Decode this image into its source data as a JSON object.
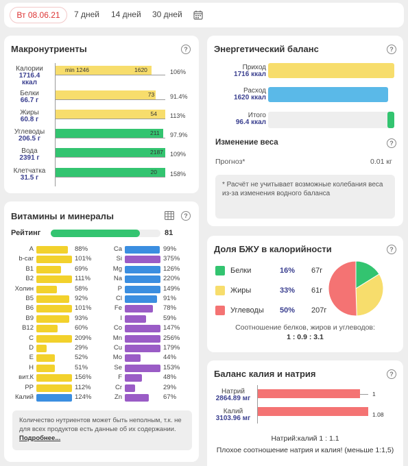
{
  "tabs": {
    "active": "Вт 08.06.21",
    "t7": "7 дней",
    "t14": "14 дней",
    "t30": "30 дней"
  },
  "macro": {
    "title": "Макронутриенты",
    "min_label": "min 1246",
    "min_value": "1620",
    "rows": [
      {
        "name": "Калории",
        "value": "1716.4",
        "unit": "ккал",
        "bar_label": "",
        "pct": "106%",
        "fill": 1.06
      },
      {
        "name": "Белки",
        "value": "66.7 г",
        "bar_label": "73",
        "pct": "91.4%",
        "fill": 0.914
      },
      {
        "name": "Жиры",
        "value": "60.8 г",
        "bar_label": "54",
        "pct": "113%",
        "fill": 1.0
      },
      {
        "name": "Углеводы",
        "value": "206.5 г",
        "bar_label": "211",
        "pct": "97.9%",
        "fill": 0.979
      },
      {
        "name": "Вода",
        "value": "2391 г",
        "bar_label": "2187",
        "pct": "109%",
        "fill": 1.0
      },
      {
        "name": "Клетчатка",
        "value": "31.5 г",
        "bar_label": "20",
        "pct": "158%",
        "fill": 1.0
      }
    ]
  },
  "energy": {
    "title": "Энергетический баланс",
    "income_name": "Приход",
    "income_value": "1716 ккал",
    "expense_name": "Расход",
    "expense_value": "1620 ккал",
    "total_name": "Итого",
    "total_value": "96.4 ккал",
    "weight_title": "Изменение веса",
    "forecast_label": "Прогноз*",
    "forecast_value": "0.01 кг",
    "note": "* Расчёт не учитывает возможные колебания веса из-за изменения водного баланса"
  },
  "vitamins": {
    "title": "Витамины и минералы",
    "rating_label": "Рейтинг",
    "rating_value": "81",
    "rating_fill": 0.81,
    "left": [
      {
        "name": "A",
        "pct": "88%",
        "fill": 0.88,
        "color": "y"
      },
      {
        "name": "b-car",
        "pct": "101%",
        "fill": 1.0,
        "color": "y"
      },
      {
        "name": "B1",
        "pct": "69%",
        "fill": 0.69,
        "color": "y"
      },
      {
        "name": "B2",
        "pct": "111%",
        "fill": 1.0,
        "color": "y"
      },
      {
        "name": "Холин",
        "pct": "58%",
        "fill": 0.58,
        "color": "y"
      },
      {
        "name": "B5",
        "pct": "92%",
        "fill": 0.92,
        "color": "y"
      },
      {
        "name": "B6",
        "pct": "101%",
        "fill": 1.0,
        "color": "y"
      },
      {
        "name": "B9",
        "pct": "93%",
        "fill": 0.93,
        "color": "y"
      },
      {
        "name": "B12",
        "pct": "60%",
        "fill": 0.6,
        "color": "y"
      },
      {
        "name": "C",
        "pct": "209%",
        "fill": 1.0,
        "color": "y"
      },
      {
        "name": "D",
        "pct": "29%",
        "fill": 0.29,
        "color": "y"
      },
      {
        "name": "E",
        "pct": "52%",
        "fill": 0.52,
        "color": "y"
      },
      {
        "name": "H",
        "pct": "51%",
        "fill": 0.51,
        "color": "y"
      },
      {
        "name": "вит.К",
        "pct": "156%",
        "fill": 1.0,
        "color": "y"
      },
      {
        "name": "PP",
        "pct": "112%",
        "fill": 1.0,
        "color": "y"
      },
      {
        "name": "Калий",
        "pct": "124%",
        "fill": 1.0,
        "color": "b"
      }
    ],
    "right": [
      {
        "name": "Ca",
        "pct": "99%",
        "fill": 0.99,
        "color": "b"
      },
      {
        "name": "Si",
        "pct": "375%",
        "fill": 1.0,
        "color": "p"
      },
      {
        "name": "Mg",
        "pct": "126%",
        "fill": 1.0,
        "color": "b"
      },
      {
        "name": "Na",
        "pct": "220%",
        "fill": 1.0,
        "color": "b"
      },
      {
        "name": "P",
        "pct": "149%",
        "fill": 1.0,
        "color": "b"
      },
      {
        "name": "Cl",
        "pct": "91%",
        "fill": 0.91,
        "color": "b"
      },
      {
        "name": "Fe",
        "pct": "78%",
        "fill": 0.78,
        "color": "p"
      },
      {
        "name": "I",
        "pct": "59%",
        "fill": 0.59,
        "color": "p"
      },
      {
        "name": "Co",
        "pct": "147%",
        "fill": 1.0,
        "color": "p"
      },
      {
        "name": "Mn",
        "pct": "256%",
        "fill": 1.0,
        "color": "p"
      },
      {
        "name": "Cu",
        "pct": "179%",
        "fill": 1.0,
        "color": "p"
      },
      {
        "name": "Mo",
        "pct": "44%",
        "fill": 0.44,
        "color": "p"
      },
      {
        "name": "Se",
        "pct": "153%",
        "fill": 1.0,
        "color": "p"
      },
      {
        "name": "F",
        "pct": "48%",
        "fill": 0.48,
        "color": "p"
      },
      {
        "name": "Cr",
        "pct": "29%",
        "fill": 0.29,
        "color": "p"
      },
      {
        "name": "Zn",
        "pct": "67%",
        "fill": 0.67,
        "color": "p"
      }
    ],
    "note": "Количество нутриентов может быть неполным, т.к. не для всех продуктов есть данные об их содержании.",
    "note_link": "Подробнее..."
  },
  "bju": {
    "title": "Доля БЖУ в калорийности",
    "rows": [
      {
        "name": "Белки",
        "pct": "16%",
        "grams": "67г",
        "color": "#33c470"
      },
      {
        "name": "Жиры",
        "pct": "33%",
        "grams": "61г",
        "color": "#f7dd6c"
      },
      {
        "name": "Углеводы",
        "pct": "50%",
        "grams": "207г",
        "color": "#f47373"
      }
    ],
    "ratio_text": "Соотношение белков, жиров и углеводов:",
    "ratio_value": "1 : 0.9 : 3.1"
  },
  "kna": {
    "title": "Баланс калия и натрия",
    "na_name": "Натрий",
    "na_value": "2864.89 мг",
    "na_ratio": "1",
    "k_name": "Калий",
    "k_value": "3103.96 мг",
    "k_ratio": "1.08",
    "ratio_line": "Натрий:калий 1 : 1.1",
    "warning": "Плохое соотношение натрия и калия! (меньше 1:1,5)"
  },
  "colors": {
    "yellow": "#f7dd6c",
    "green": "#33c470",
    "blue": "#5ab9e8",
    "purple": "#9a5cc6",
    "red": "#f47373"
  }
}
